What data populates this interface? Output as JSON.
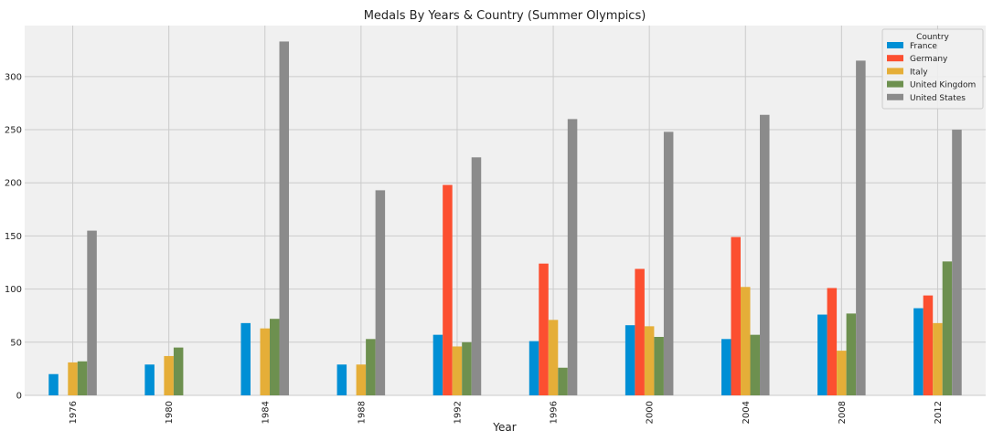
{
  "chart_data": {
    "type": "bar",
    "title": "Medals By Years & Country (Summer Olympics)",
    "xlabel": "Year",
    "ylabel": "",
    "categories": [
      "1976",
      "1980",
      "1984",
      "1988",
      "1992",
      "1996",
      "2000",
      "2004",
      "2008",
      "2012"
    ],
    "ylim": [
      0,
      348
    ],
    "yticks": [
      0,
      50,
      100,
      150,
      200,
      250,
      300
    ],
    "grid": true,
    "legend": {
      "title": "Country",
      "placement": "top-right"
    },
    "series": [
      {
        "name": "France",
        "color": "#008fd5",
        "values": [
          20,
          29,
          68,
          29,
          57,
          51,
          66,
          53,
          76,
          82
        ]
      },
      {
        "name": "Germany",
        "color": "#fc4f30",
        "values": [
          0,
          0,
          0,
          0,
          198,
          124,
          119,
          149,
          101,
          94
        ]
      },
      {
        "name": "Italy",
        "color": "#e5ae38",
        "values": [
          31,
          37,
          63,
          29,
          46,
          71,
          65,
          102,
          42,
          68
        ]
      },
      {
        "name": "United Kingdom",
        "color": "#6d904f",
        "values": [
          32,
          45,
          72,
          53,
          50,
          26,
          55,
          57,
          77,
          126
        ]
      },
      {
        "name": "United States",
        "color": "#8b8b8b",
        "values": [
          155,
          0,
          333,
          193,
          224,
          260,
          248,
          264,
          315,
          250
        ]
      }
    ]
  }
}
